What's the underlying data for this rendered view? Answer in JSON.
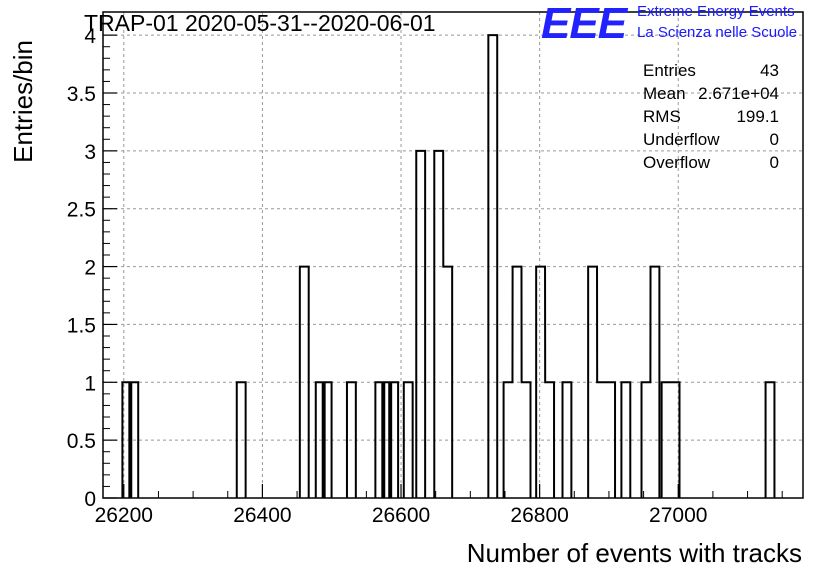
{
  "header": {
    "title": "TRAP-01 2020-05-31--2020-06-01",
    "logo_text": "EEE",
    "logo_line1": "Extreme Energy Events",
    "logo_line2": "La Scienza nelle Scuole",
    "logo_color": "#2222ff"
  },
  "stats": {
    "rows": [
      {
        "key": "Entries",
        "value": "43"
      },
      {
        "key": "Mean",
        "value": "2.671e+04"
      },
      {
        "key": "RMS",
        "value": "199.1"
      },
      {
        "key": "Underflow",
        "value": "0"
      },
      {
        "key": "Overflow",
        "value": "0"
      }
    ]
  },
  "chart_data": {
    "type": "bar",
    "histogram": true,
    "xlabel": "Number of events with tracks",
    "ylabel": "Entries/bin",
    "xlim": [
      26170,
      27180
    ],
    "ylim": [
      0,
      4.2
    ],
    "bin_width": 12.8,
    "xticks": [
      26200,
      26400,
      26600,
      26800,
      27000
    ],
    "xtick_labels": [
      "26200",
      "26400",
      "26600",
      "26800",
      "27000"
    ],
    "yticks": [
      0,
      0.5,
      1,
      1.5,
      2,
      2.5,
      3,
      3.5,
      4
    ],
    "ytick_labels": [
      "0",
      "0.5",
      "1",
      "1.5",
      "2",
      "2.5",
      "3",
      "3.5",
      "4"
    ],
    "grid": true,
    "line_color": "#000000",
    "bins": [
      {
        "x": 26198,
        "count": 1
      },
      {
        "x": 26208,
        "count": 1
      },
      {
        "x": 26363,
        "count": 1
      },
      {
        "x": 26454,
        "count": 2
      },
      {
        "x": 26477,
        "count": 1
      },
      {
        "x": 26487,
        "count": 1
      },
      {
        "x": 26522,
        "count": 1
      },
      {
        "x": 26563,
        "count": 1
      },
      {
        "x": 26573,
        "count": 1
      },
      {
        "x": 26583,
        "count": 1
      },
      {
        "x": 26604,
        "count": 1
      },
      {
        "x": 26622,
        "count": 3
      },
      {
        "x": 26648,
        "count": 3
      },
      {
        "x": 26661,
        "count": 2
      },
      {
        "x": 26726,
        "count": 4
      },
      {
        "x": 26748,
        "count": 1
      },
      {
        "x": 26761,
        "count": 2
      },
      {
        "x": 26774,
        "count": 1
      },
      {
        "x": 26795,
        "count": 2
      },
      {
        "x": 26808,
        "count": 1
      },
      {
        "x": 26833,
        "count": 1
      },
      {
        "x": 26870,
        "count": 2
      },
      {
        "x": 26883,
        "count": 1
      },
      {
        "x": 26896,
        "count": 1
      },
      {
        "x": 26918,
        "count": 1
      },
      {
        "x": 26947,
        "count": 1
      },
      {
        "x": 26960,
        "count": 2
      },
      {
        "x": 26976,
        "count": 1
      },
      {
        "x": 26989,
        "count": 1
      },
      {
        "x": 27126,
        "count": 1
      }
    ]
  }
}
